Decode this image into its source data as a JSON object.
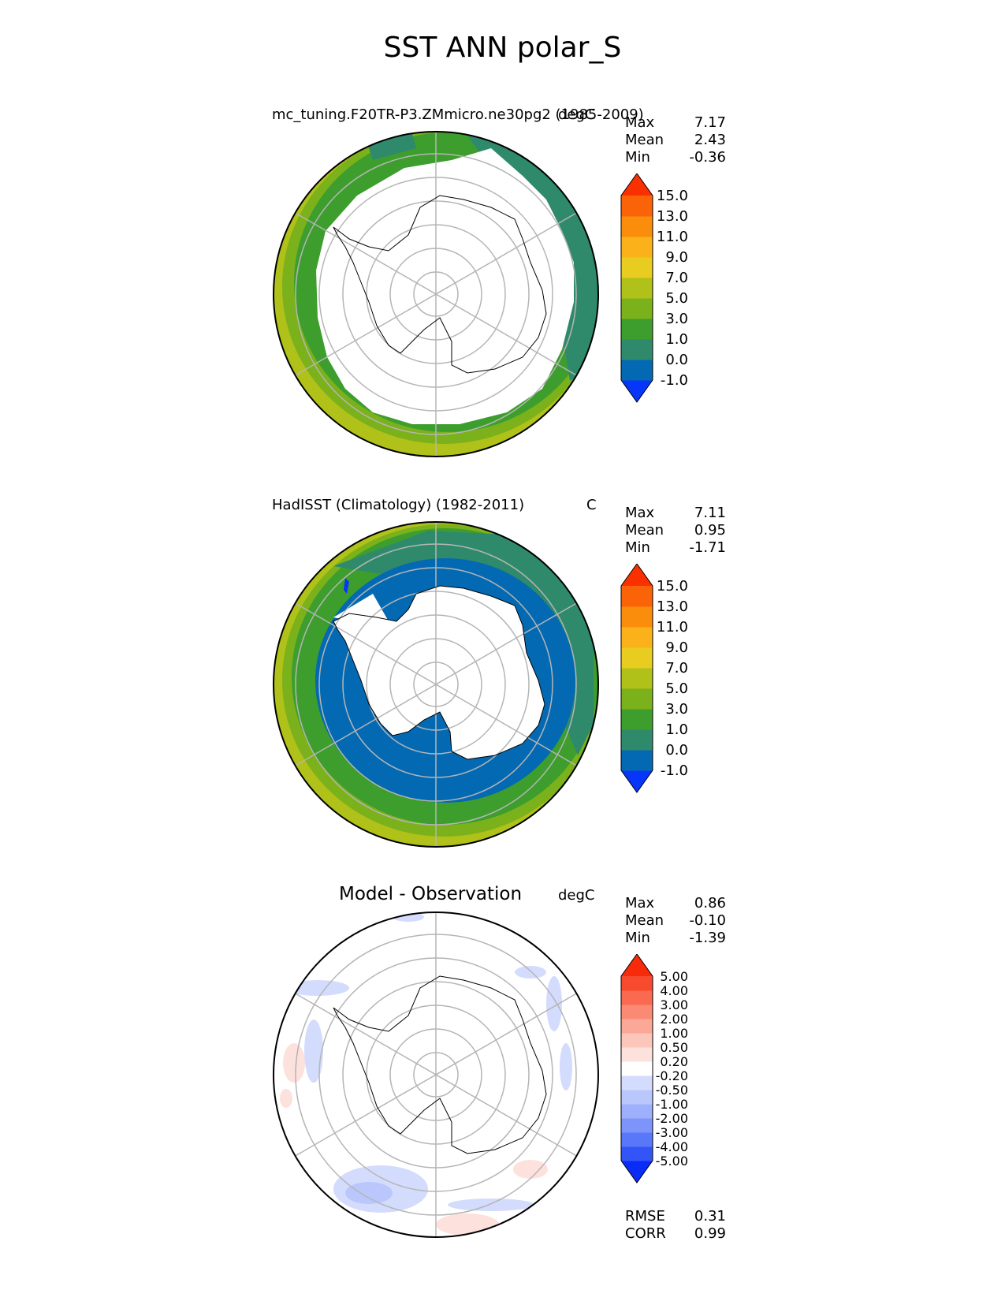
{
  "figure_title": "SST ANN polar_S",
  "panels": [
    {
      "title": "mc_tuning.F20TR-P3.ZMmicro.ne30pg2 (1985-2009)",
      "units": "degC",
      "stats": {
        "max_label": "Max",
        "max": "7.17",
        "mean_label": "Mean",
        "mean": "2.43",
        "min_label": "Min",
        "min": "-0.36"
      },
      "colorbar": {
        "colors": [
          "#0636fa",
          "#0469b3",
          "#2f8a6b",
          "#3d9e2d",
          "#7bb11b",
          "#b0c11a",
          "#e8cc20",
          "#fbb21a",
          "#fb8d0c",
          "#fb6308",
          "#fa3000"
        ],
        "labels": [
          "-1.0",
          "0.0",
          "1.0",
          "3.0",
          "5.0",
          "7.0",
          "9.0",
          "11.0",
          "13.0",
          "15.0"
        ]
      }
    },
    {
      "title": "HadISST (Climatology) (1982-2011)",
      "units": "C",
      "stats": {
        "max_label": "Max",
        "max": "7.11",
        "mean_label": "Mean",
        "mean": "0.95",
        "min_label": "Min",
        "min": "-1.71"
      },
      "colorbar": {
        "colors": [
          "#0636fa",
          "#0469b3",
          "#2f8a6b",
          "#3d9e2d",
          "#7bb11b",
          "#b0c11a",
          "#e8cc20",
          "#fbb21a",
          "#fb8d0c",
          "#fb6308",
          "#fa3000"
        ],
        "labels": [
          "-1.0",
          "0.0",
          "1.0",
          "3.0",
          "5.0",
          "7.0",
          "9.0",
          "11.0",
          "13.0",
          "15.0"
        ]
      }
    },
    {
      "title": "Model - Observation",
      "units": "degC",
      "stats": {
        "max_label": "Max",
        "max": "0.86",
        "mean_label": "Mean",
        "mean": "-0.10",
        "min_label": "Min",
        "min": "-1.39"
      },
      "colorbar": {
        "colors": [
          "#0a2cf7",
          "#3355f8",
          "#5978f9",
          "#7d95fa",
          "#9eb0fb",
          "#bac7fc",
          "#d4dcfd",
          "#ffffff",
          "#fde1dc",
          "#fcc6bb",
          "#fca898",
          "#fb8a74",
          "#fa6a50",
          "#f84a2d",
          "#f72a0b"
        ],
        "labels": [
          "-5.00",
          "-4.00",
          "-3.00",
          "-2.00",
          "-1.00",
          "-0.50",
          "-0.20",
          "0.20",
          "0.50",
          "1.00",
          "2.00",
          "3.00",
          "4.00",
          "5.00"
        ]
      },
      "extra_stats": {
        "rmse_label": "RMSE",
        "rmse": "0.31",
        "corr_label": "CORR",
        "corr": "0.99"
      }
    }
  ]
}
